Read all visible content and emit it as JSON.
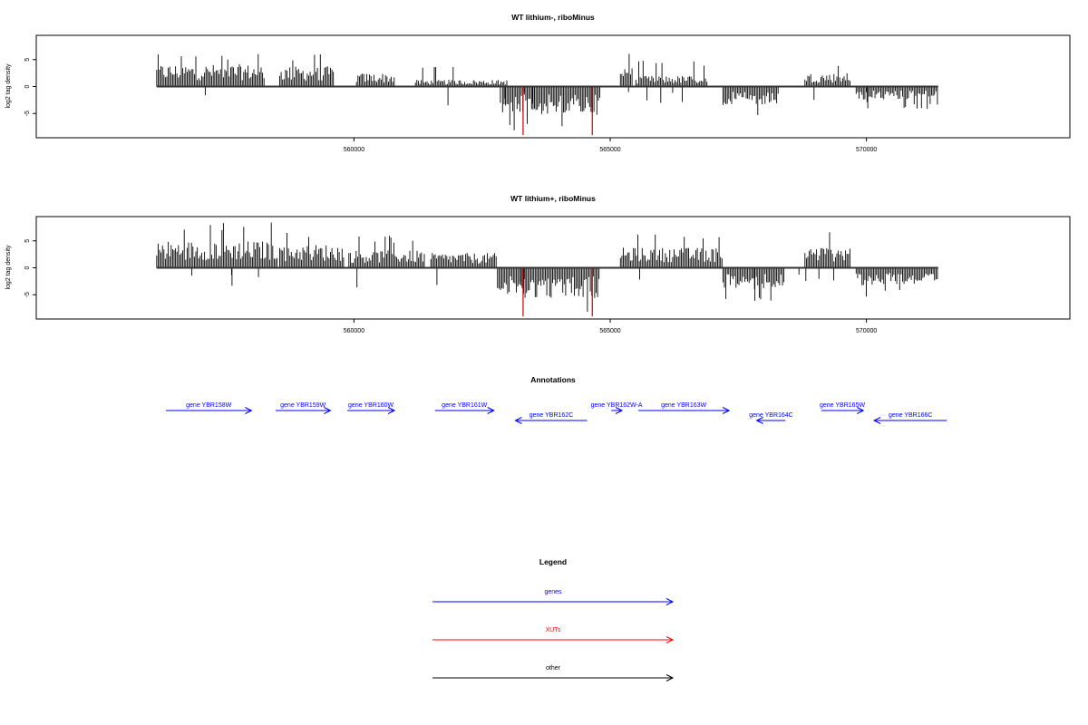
{
  "colors": {
    "genes": "#0000ff",
    "xuts": "#ff0000",
    "other": "#000000",
    "positive_bars": "#000000",
    "negative_bars": "#000000",
    "highlight_bars": "#cc0000"
  },
  "chart_data": [
    {
      "type": "bar",
      "title": "WT lithium-, riboMinus",
      "ylabel": "log2 tag density",
      "ylim": [
        -9.5,
        9.5
      ],
      "yticks": [
        "5",
        "0",
        "-5"
      ],
      "ytick_values": [
        5,
        0,
        -5
      ],
      "xlim": [
        553800,
        573970
      ],
      "xticks": [
        "560000",
        "565000",
        "570000"
      ],
      "xtick_values": [
        560000,
        565000,
        570000
      ],
      "grid": false,
      "segments": [
        {
          "start": 556150,
          "end": 558250,
          "sign": 1,
          "mean": 3.3,
          "max": 6.5
        },
        {
          "start": 558550,
          "end": 559600,
          "sign": 1,
          "mean": 3.0,
          "max": 6.0
        },
        {
          "start": 560050,
          "end": 560800,
          "sign": 1,
          "mean": 2.0,
          "max": 4.5
        },
        {
          "start": 561200,
          "end": 563000,
          "sign": 1,
          "mean": 1.0,
          "max": 3.8
        },
        {
          "start": 562900,
          "end": 564800,
          "sign": -1,
          "mean": -4.2,
          "max": -8.2
        },
        {
          "start": 565200,
          "end": 565450,
          "sign": 1,
          "mean": 3.5,
          "max": 6.5
        },
        {
          "start": 565500,
          "end": 566900,
          "sign": 1,
          "mean": 1.6,
          "max": 4.8
        },
        {
          "start": 567200,
          "end": 568300,
          "sign": -1,
          "mean": -2.8,
          "max": -6.0
        },
        {
          "start": 568800,
          "end": 569700,
          "sign": 1,
          "mean": 2.0,
          "max": 4.5
        },
        {
          "start": 569800,
          "end": 571400,
          "sign": -1,
          "mean": -2.0,
          "max": -4.2
        }
      ],
      "highlights": [
        563300,
        564650
      ]
    },
    {
      "type": "bar",
      "title": "WT lithium+, riboMinus",
      "ylabel": "log2 tag density",
      "ylim": [
        -9.5,
        9.5
      ],
      "yticks": [
        "5",
        "0",
        "-5"
      ],
      "ytick_values": [
        5,
        0,
        -5
      ],
      "xlim": [
        553800,
        573970
      ],
      "xticks": [
        "560000",
        "565000",
        "570000"
      ],
      "xtick_values": [
        560000,
        565000,
        570000
      ],
      "grid": false,
      "segments": [
        {
          "start": 556150,
          "end": 558500,
          "sign": 1,
          "mean": 4.0,
          "max": 8.5
        },
        {
          "start": 558550,
          "end": 559800,
          "sign": 1,
          "mean": 3.5,
          "max": 7.0
        },
        {
          "start": 559900,
          "end": 561400,
          "sign": 1,
          "mean": 2.6,
          "max": 6.0
        },
        {
          "start": 561500,
          "end": 562800,
          "sign": 1,
          "mean": 2.2,
          "max": 7.0
        },
        {
          "start": 562800,
          "end": 564800,
          "sign": -1,
          "mean": -4.5,
          "max": -8.8
        },
        {
          "start": 565200,
          "end": 567200,
          "sign": 1,
          "mean": 3.0,
          "max": 6.5
        },
        {
          "start": 567200,
          "end": 568400,
          "sign": -1,
          "mean": -3.2,
          "max": -6.2
        },
        {
          "start": 568800,
          "end": 569700,
          "sign": 1,
          "mean": 3.2,
          "max": 7.0
        },
        {
          "start": 569800,
          "end": 571400,
          "sign": -1,
          "mean": -2.6,
          "max": -5.5
        }
      ],
      "highlights": [
        563300,
        564650
      ]
    }
  ],
  "annotations": {
    "title": "Annotations",
    "genes": [
      {
        "label": "gene YBR158W",
        "start": 556330,
        "end": 558000,
        "strand": "+",
        "row": 0
      },
      {
        "label": "gene YBR159W",
        "start": 558470,
        "end": 559540,
        "strand": "+",
        "row": 0
      },
      {
        "label": "gene YBR160W",
        "start": 559870,
        "end": 560790,
        "strand": "+",
        "row": 0
      },
      {
        "label": "gene YBR161W",
        "start": 561580,
        "end": 562730,
        "strand": "+",
        "row": 0
      },
      {
        "label": "gene YBR162C",
        "start": 563150,
        "end": 564550,
        "strand": "-",
        "row": 1
      },
      {
        "label": "gene YBR162W-A",
        "start": 565020,
        "end": 565230,
        "strand": "+",
        "row": 0
      },
      {
        "label": "gene YBR163W",
        "start": 565550,
        "end": 567320,
        "strand": "+",
        "row": 0
      },
      {
        "label": "gene YBR164C",
        "start": 567860,
        "end": 568420,
        "strand": "-",
        "row": 1
      },
      {
        "label": "gene YBR165W",
        "start": 569120,
        "end": 569940,
        "strand": "+",
        "row": 0
      },
      {
        "label": "gene YBR166C",
        "start": 570150,
        "end": 571570,
        "strand": "-",
        "row": 1
      }
    ]
  },
  "legend": {
    "title": "Legend",
    "items": [
      {
        "label": "genes",
        "color": "#0000ff"
      },
      {
        "label": "XUTs",
        "color": "#ff0000"
      },
      {
        "label": "other",
        "color": "#000000"
      }
    ]
  }
}
